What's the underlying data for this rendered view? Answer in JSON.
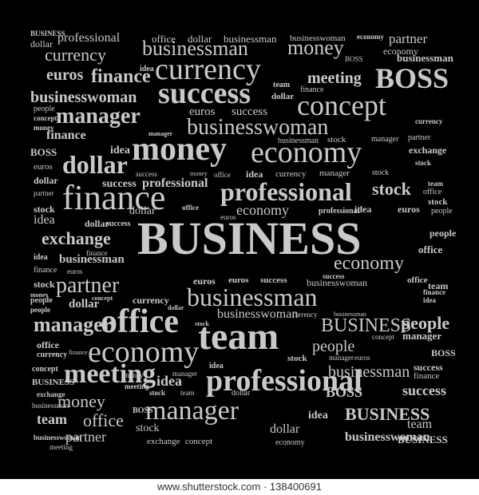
{
  "cloud": {
    "words": [
      "BUSINESS",
      "professional",
      "office",
      "dollar",
      "businessman",
      "businesswoman",
      "economy",
      "partner",
      "dollar",
      "currency",
      "businessman",
      "money",
      "economy",
      "BOSS",
      "businessman",
      "euros",
      "finance",
      "idea",
      "currency",
      "meeting",
      "BOSS",
      "success",
      "team",
      "finance",
      "businesswoman",
      "concept",
      "dollar",
      "people",
      "manager",
      "euros",
      "success",
      "currency",
      "concept",
      "businesswoman",
      "money",
      "finance",
      "manager",
      "businessman",
      "stock",
      "manager",
      "partner",
      "exchange",
      "BOSS",
      "idea",
      "money",
      "economy",
      "stock",
      "euros",
      "dollar",
      "success",
      "money",
      "office",
      "idea",
      "currency",
      "manager",
      "stock",
      "dollar",
      "success",
      "professional",
      "team",
      "office",
      "partner",
      "finance",
      "professional",
      "stock",
      "stock",
      "people",
      "idea",
      "office",
      "economy",
      "professional",
      "idea",
      "stock",
      "dollar",
      "success",
      "dollar",
      "euros",
      "euros",
      "exchange",
      "BUSINESS",
      "people",
      "idea",
      "businessman",
      "finance",
      "office",
      "finance",
      "economy",
      "euros",
      "stock",
      "success",
      "businesswoman",
      "office",
      "partner",
      "euros",
      "euros",
      "success",
      "businessman",
      "team",
      "money",
      "dollar",
      "concept",
      "people",
      "currency",
      "finance",
      "people",
      "dollar",
      "idea",
      "manager",
      "office",
      "stock",
      "businesswoman",
      "currency",
      "businessman",
      "BUSINESS",
      "people",
      "office",
      "economy",
      "team",
      "people",
      "concept",
      "manager",
      "currency",
      "finance",
      "stock",
      "manager",
      "euros",
      "BOSS",
      "concept",
      "meeting",
      "idea",
      "businessman",
      "success",
      "finance",
      "money",
      "manager",
      "professional",
      "success",
      "BUSINESS",
      "idea",
      "BOSS",
      "exchange",
      "meeting",
      "stock",
      "team",
      "dollar",
      "businessman",
      "money",
      "BOSS",
      "manager",
      "idea",
      "BUSINESS",
      "team",
      "team",
      "office",
      "stock",
      "dollar",
      "businesswoman",
      "partner",
      "exchange",
      "concept",
      "economy",
      "businesswoman",
      "BUSINESS",
      "meeting",
      "BUSINESS",
      "businessman"
    ]
  },
  "footer": {
    "watermark": "www.shutterstock.com · 138400691"
  },
  "colors": {
    "background": "#000000",
    "text": "#c9c9c9",
    "footer_bg": "#ffffff",
    "footer_text": "#333333"
  }
}
